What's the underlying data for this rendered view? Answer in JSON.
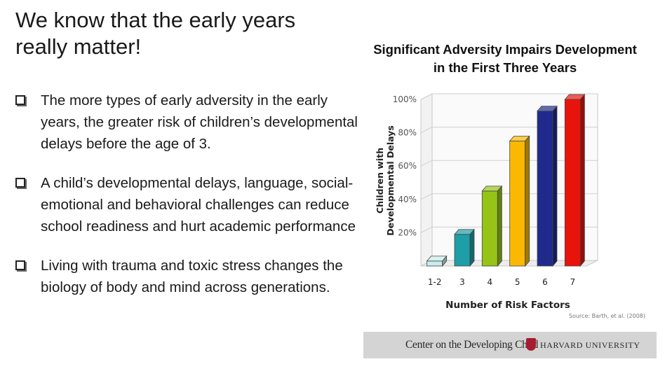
{
  "slide": {
    "title": "We know that the early years really matter!",
    "bullets": [
      "The more types of early adversity in the early years, the greater risk of children’s developmental delays before the age of 3.",
      "A child’s developmental delays, language, social-emotional and behavioral challenges can reduce school readiness and hurt academic performance",
      "Living with trauma and toxic stress changes the biology of body and mind across generations."
    ]
  },
  "chart_title_line1": "Significant Adversity Impairs Development",
  "chart_title_line2": "in the First Three Years",
  "chart_data": {
    "type": "bar",
    "title": "Significant Adversity Impairs Development in the First Three Years",
    "xlabel": "Number of Risk Factors",
    "ylabel": "Children with Developmental Delays",
    "categories": [
      "1-2",
      "3",
      "4",
      "5",
      "6",
      "7"
    ],
    "values": [
      3,
      19,
      45,
      75,
      93,
      100
    ],
    "ylim": [
      0,
      100
    ],
    "yticks": [
      "20%",
      "40%",
      "60%",
      "80%",
      "100%"
    ],
    "colors": [
      "#c9ecec",
      "#1e9ea6",
      "#95c417",
      "#fbb800",
      "#1f2a8c",
      "#e8140c"
    ],
    "source": "Source: Barth, et al. (2008)",
    "grid": true
  },
  "footer": {
    "center_name": "Center on the Developing Child",
    "university": "HARVARD UNIVERSITY"
  },
  "icons": {
    "bullet": "checkbox-square-icon",
    "logo": "harvard-shield-icon"
  }
}
